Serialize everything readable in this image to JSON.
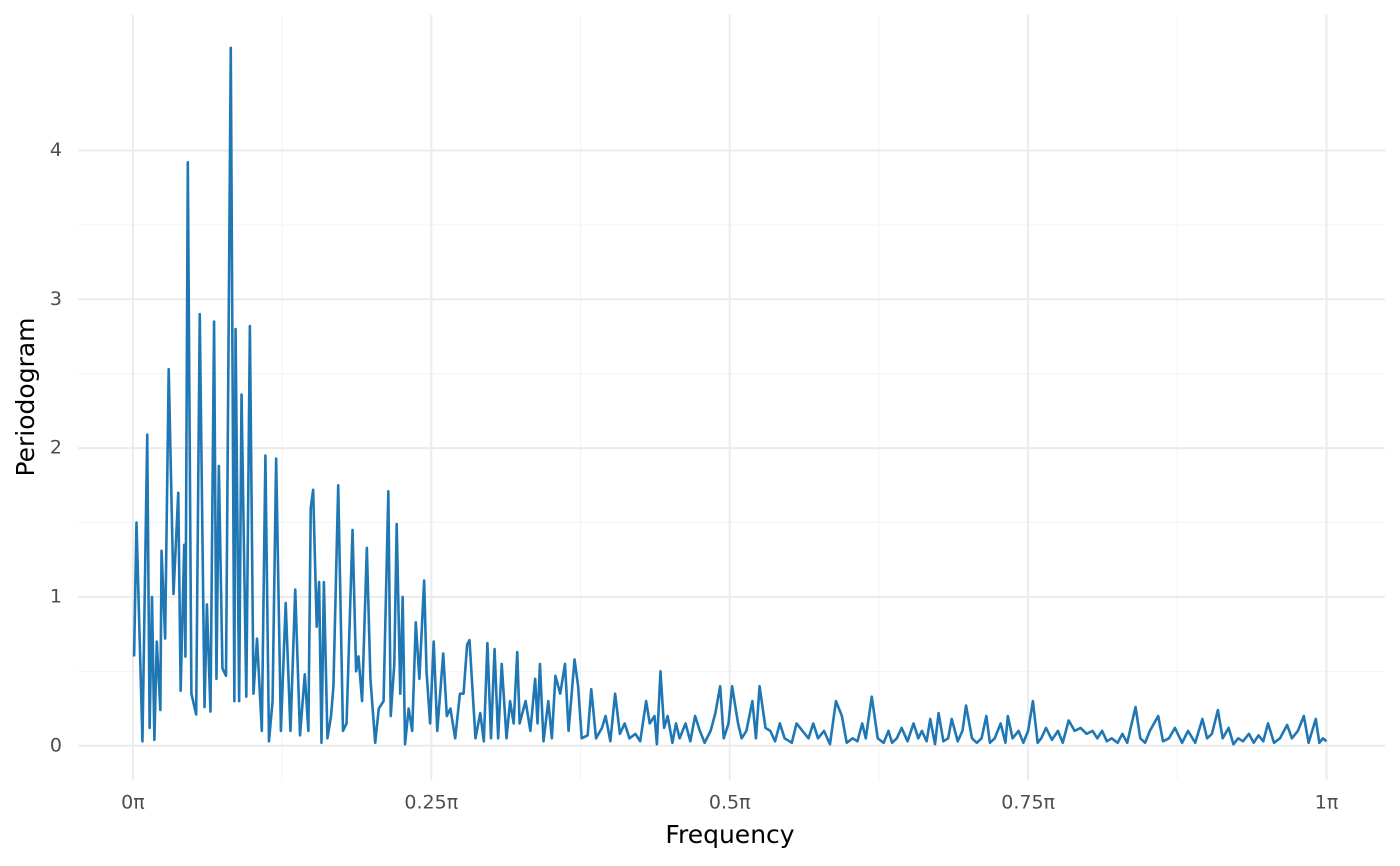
{
  "chart_data": {
    "type": "line",
    "x_label": "Frequency",
    "y_label": "Periodogram",
    "xlim": [
      -0.046,
      1.049
    ],
    "ylim": [
      -0.23,
      4.91
    ],
    "xticks": [
      {
        "value": 0,
        "label": "0π"
      },
      {
        "value": 0.25,
        "label": "0.25π"
      },
      {
        "value": 0.5,
        "label": "0.5π"
      },
      {
        "value": 0.75,
        "label": "0.75π"
      },
      {
        "value": 1,
        "label": "1π"
      }
    ],
    "yticks": [
      0,
      1,
      2,
      3,
      4
    ],
    "grid": true,
    "minor_grid": true,
    "series": [
      {
        "color": "#1f77b4",
        "x": [
          0.001,
          0.003,
          0.008,
          0.012,
          0.014,
          0.016,
          0.018,
          0.02,
          0.023,
          0.024,
          0.027,
          0.03,
          0.034,
          0.038,
          0.04,
          0.043,
          0.044,
          0.046,
          0.049,
          0.053,
          0.056,
          0.06,
          0.062,
          0.065,
          0.068,
          0.07,
          0.072,
          0.075,
          0.078,
          0.082,
          0.085,
          0.086,
          0.089,
          0.091,
          0.095,
          0.098,
          0.101,
          0.104,
          0.108,
          0.111,
          0.114,
          0.117,
          0.12,
          0.124,
          0.128,
          0.132,
          0.136,
          0.14,
          0.144,
          0.147,
          0.149,
          0.151,
          0.154,
          0.156,
          0.158,
          0.16,
          0.163,
          0.166,
          0.168,
          0.172,
          0.176,
          0.179,
          0.184,
          0.187,
          0.189,
          0.192,
          0.196,
          0.199,
          0.203,
          0.206,
          0.21,
          0.214,
          0.216,
          0.219,
          0.221,
          0.224,
          0.226,
          0.228,
          0.231,
          0.234,
          0.237,
          0.24,
          0.244,
          0.246,
          0.249,
          0.252,
          0.255,
          0.26,
          0.263,
          0.266,
          0.27,
          0.274,
          0.277,
          0.28,
          0.282,
          0.287,
          0.291,
          0.294,
          0.297,
          0.3,
          0.303,
          0.306,
          0.309,
          0.313,
          0.316,
          0.319,
          0.322,
          0.324,
          0.329,
          0.333,
          0.337,
          0.339,
          0.341,
          0.344,
          0.348,
          0.351,
          0.354,
          0.358,
          0.362,
          0.365,
          0.37,
          0.373,
          0.376,
          0.381,
          0.384,
          0.388,
          0.393,
          0.396,
          0.4,
          0.404,
          0.408,
          0.412,
          0.416,
          0.421,
          0.425,
          0.43,
          0.433,
          0.437,
          0.439,
          0.442,
          0.445,
          0.448,
          0.452,
          0.455,
          0.458,
          0.463,
          0.467,
          0.471,
          0.475,
          0.479,
          0.484,
          0.488,
          0.492,
          0.495,
          0.499,
          0.502,
          0.507,
          0.51,
          0.514,
          0.519,
          0.522,
          0.525,
          0.53,
          0.534,
          0.538,
          0.542,
          0.546,
          0.552,
          0.556,
          0.561,
          0.566,
          0.57,
          0.574,
          0.579,
          0.584,
          0.589,
          0.594,
          0.598,
          0.603,
          0.607,
          0.611,
          0.614,
          0.619,
          0.624,
          0.629,
          0.633,
          0.636,
          0.64,
          0.644,
          0.649,
          0.654,
          0.658,
          0.661,
          0.665,
          0.668,
          0.672,
          0.675,
          0.679,
          0.683,
          0.686,
          0.691,
          0.695,
          0.698,
          0.703,
          0.707,
          0.711,
          0.715,
          0.718,
          0.722,
          0.727,
          0.731,
          0.733,
          0.737,
          0.742,
          0.746,
          0.75,
          0.754,
          0.758,
          0.761,
          0.765,
          0.77,
          0.775,
          0.779,
          0.784,
          0.789,
          0.794,
          0.799,
          0.804,
          0.808,
          0.812,
          0.816,
          0.82,
          0.825,
          0.829,
          0.833,
          0.84,
          0.844,
          0.848,
          0.852,
          0.859,
          0.863,
          0.868,
          0.873,
          0.879,
          0.884,
          0.89,
          0.896,
          0.9,
          0.904,
          0.909,
          0.913,
          0.918,
          0.922,
          0.926,
          0.93,
          0.935,
          0.939,
          0.943,
          0.947,
          0.951,
          0.956,
          0.961,
          0.967,
          0.971,
          0.976,
          0.981,
          0.985,
          0.991,
          0.994,
          0.997,
          1.0
        ],
        "values": [
          0.6,
          1.5,
          0.03,
          2.09,
          0.12,
          1.0,
          0.04,
          0.7,
          0.24,
          1.31,
          0.72,
          2.53,
          1.02,
          1.7,
          0.37,
          1.35,
          0.6,
          3.92,
          0.35,
          0.21,
          2.9,
          0.26,
          0.95,
          0.23,
          2.85,
          0.45,
          1.88,
          0.52,
          0.47,
          4.69,
          0.3,
          2.8,
          0.3,
          2.36,
          0.33,
          2.82,
          0.35,
          0.72,
          0.1,
          1.95,
          0.03,
          0.3,
          1.93,
          0.1,
          0.96,
          0.1,
          1.05,
          0.07,
          0.48,
          0.1,
          1.6,
          1.72,
          0.8,
          1.1,
          0.02,
          1.1,
          0.05,
          0.2,
          0.4,
          1.75,
          0.1,
          0.15,
          1.45,
          0.5,
          0.6,
          0.3,
          1.33,
          0.45,
          0.02,
          0.25,
          0.3,
          1.71,
          0.2,
          0.55,
          1.49,
          0.35,
          1.0,
          0.01,
          0.25,
          0.1,
          0.83,
          0.45,
          1.11,
          0.5,
          0.15,
          0.7,
          0.1,
          0.62,
          0.2,
          0.25,
          0.05,
          0.35,
          0.35,
          0.68,
          0.71,
          0.05,
          0.22,
          0.03,
          0.69,
          0.05,
          0.65,
          0.05,
          0.55,
          0.05,
          0.3,
          0.15,
          0.63,
          0.15,
          0.3,
          0.1,
          0.45,
          0.15,
          0.55,
          0.03,
          0.3,
          0.05,
          0.47,
          0.35,
          0.55,
          0.1,
          0.58,
          0.4,
          0.05,
          0.07,
          0.38,
          0.05,
          0.12,
          0.2,
          0.03,
          0.35,
          0.08,
          0.15,
          0.05,
          0.08,
          0.03,
          0.3,
          0.15,
          0.2,
          0.01,
          0.5,
          0.12,
          0.2,
          0.02,
          0.15,
          0.05,
          0.15,
          0.03,
          0.2,
          0.1,
          0.02,
          0.1,
          0.22,
          0.4,
          0.05,
          0.15,
          0.4,
          0.15,
          0.05,
          0.1,
          0.3,
          0.05,
          0.4,
          0.12,
          0.1,
          0.03,
          0.15,
          0.05,
          0.02,
          0.15,
          0.1,
          0.05,
          0.15,
          0.05,
          0.1,
          0.01,
          0.3,
          0.2,
          0.02,
          0.05,
          0.03,
          0.15,
          0.05,
          0.33,
          0.05,
          0.02,
          0.1,
          0.02,
          0.05,
          0.12,
          0.03,
          0.15,
          0.05,
          0.1,
          0.03,
          0.18,
          0.01,
          0.22,
          0.03,
          0.05,
          0.18,
          0.03,
          0.1,
          0.27,
          0.05,
          0.02,
          0.05,
          0.2,
          0.02,
          0.05,
          0.15,
          0.02,
          0.2,
          0.05,
          0.1,
          0.02,
          0.1,
          0.3,
          0.02,
          0.05,
          0.12,
          0.04,
          0.1,
          0.02,
          0.17,
          0.1,
          0.12,
          0.08,
          0.1,
          0.05,
          0.1,
          0.03,
          0.05,
          0.02,
          0.08,
          0.02,
          0.26,
          0.05,
          0.02,
          0.1,
          0.2,
          0.03,
          0.05,
          0.12,
          0.02,
          0.1,
          0.02,
          0.18,
          0.05,
          0.08,
          0.24,
          0.05,
          0.12,
          0.01,
          0.05,
          0.03,
          0.08,
          0.02,
          0.07,
          0.03,
          0.15,
          0.02,
          0.05,
          0.14,
          0.05,
          0.1,
          0.2,
          0.02,
          0.18,
          0.02,
          0.05,
          0.03
        ]
      }
    ]
  }
}
